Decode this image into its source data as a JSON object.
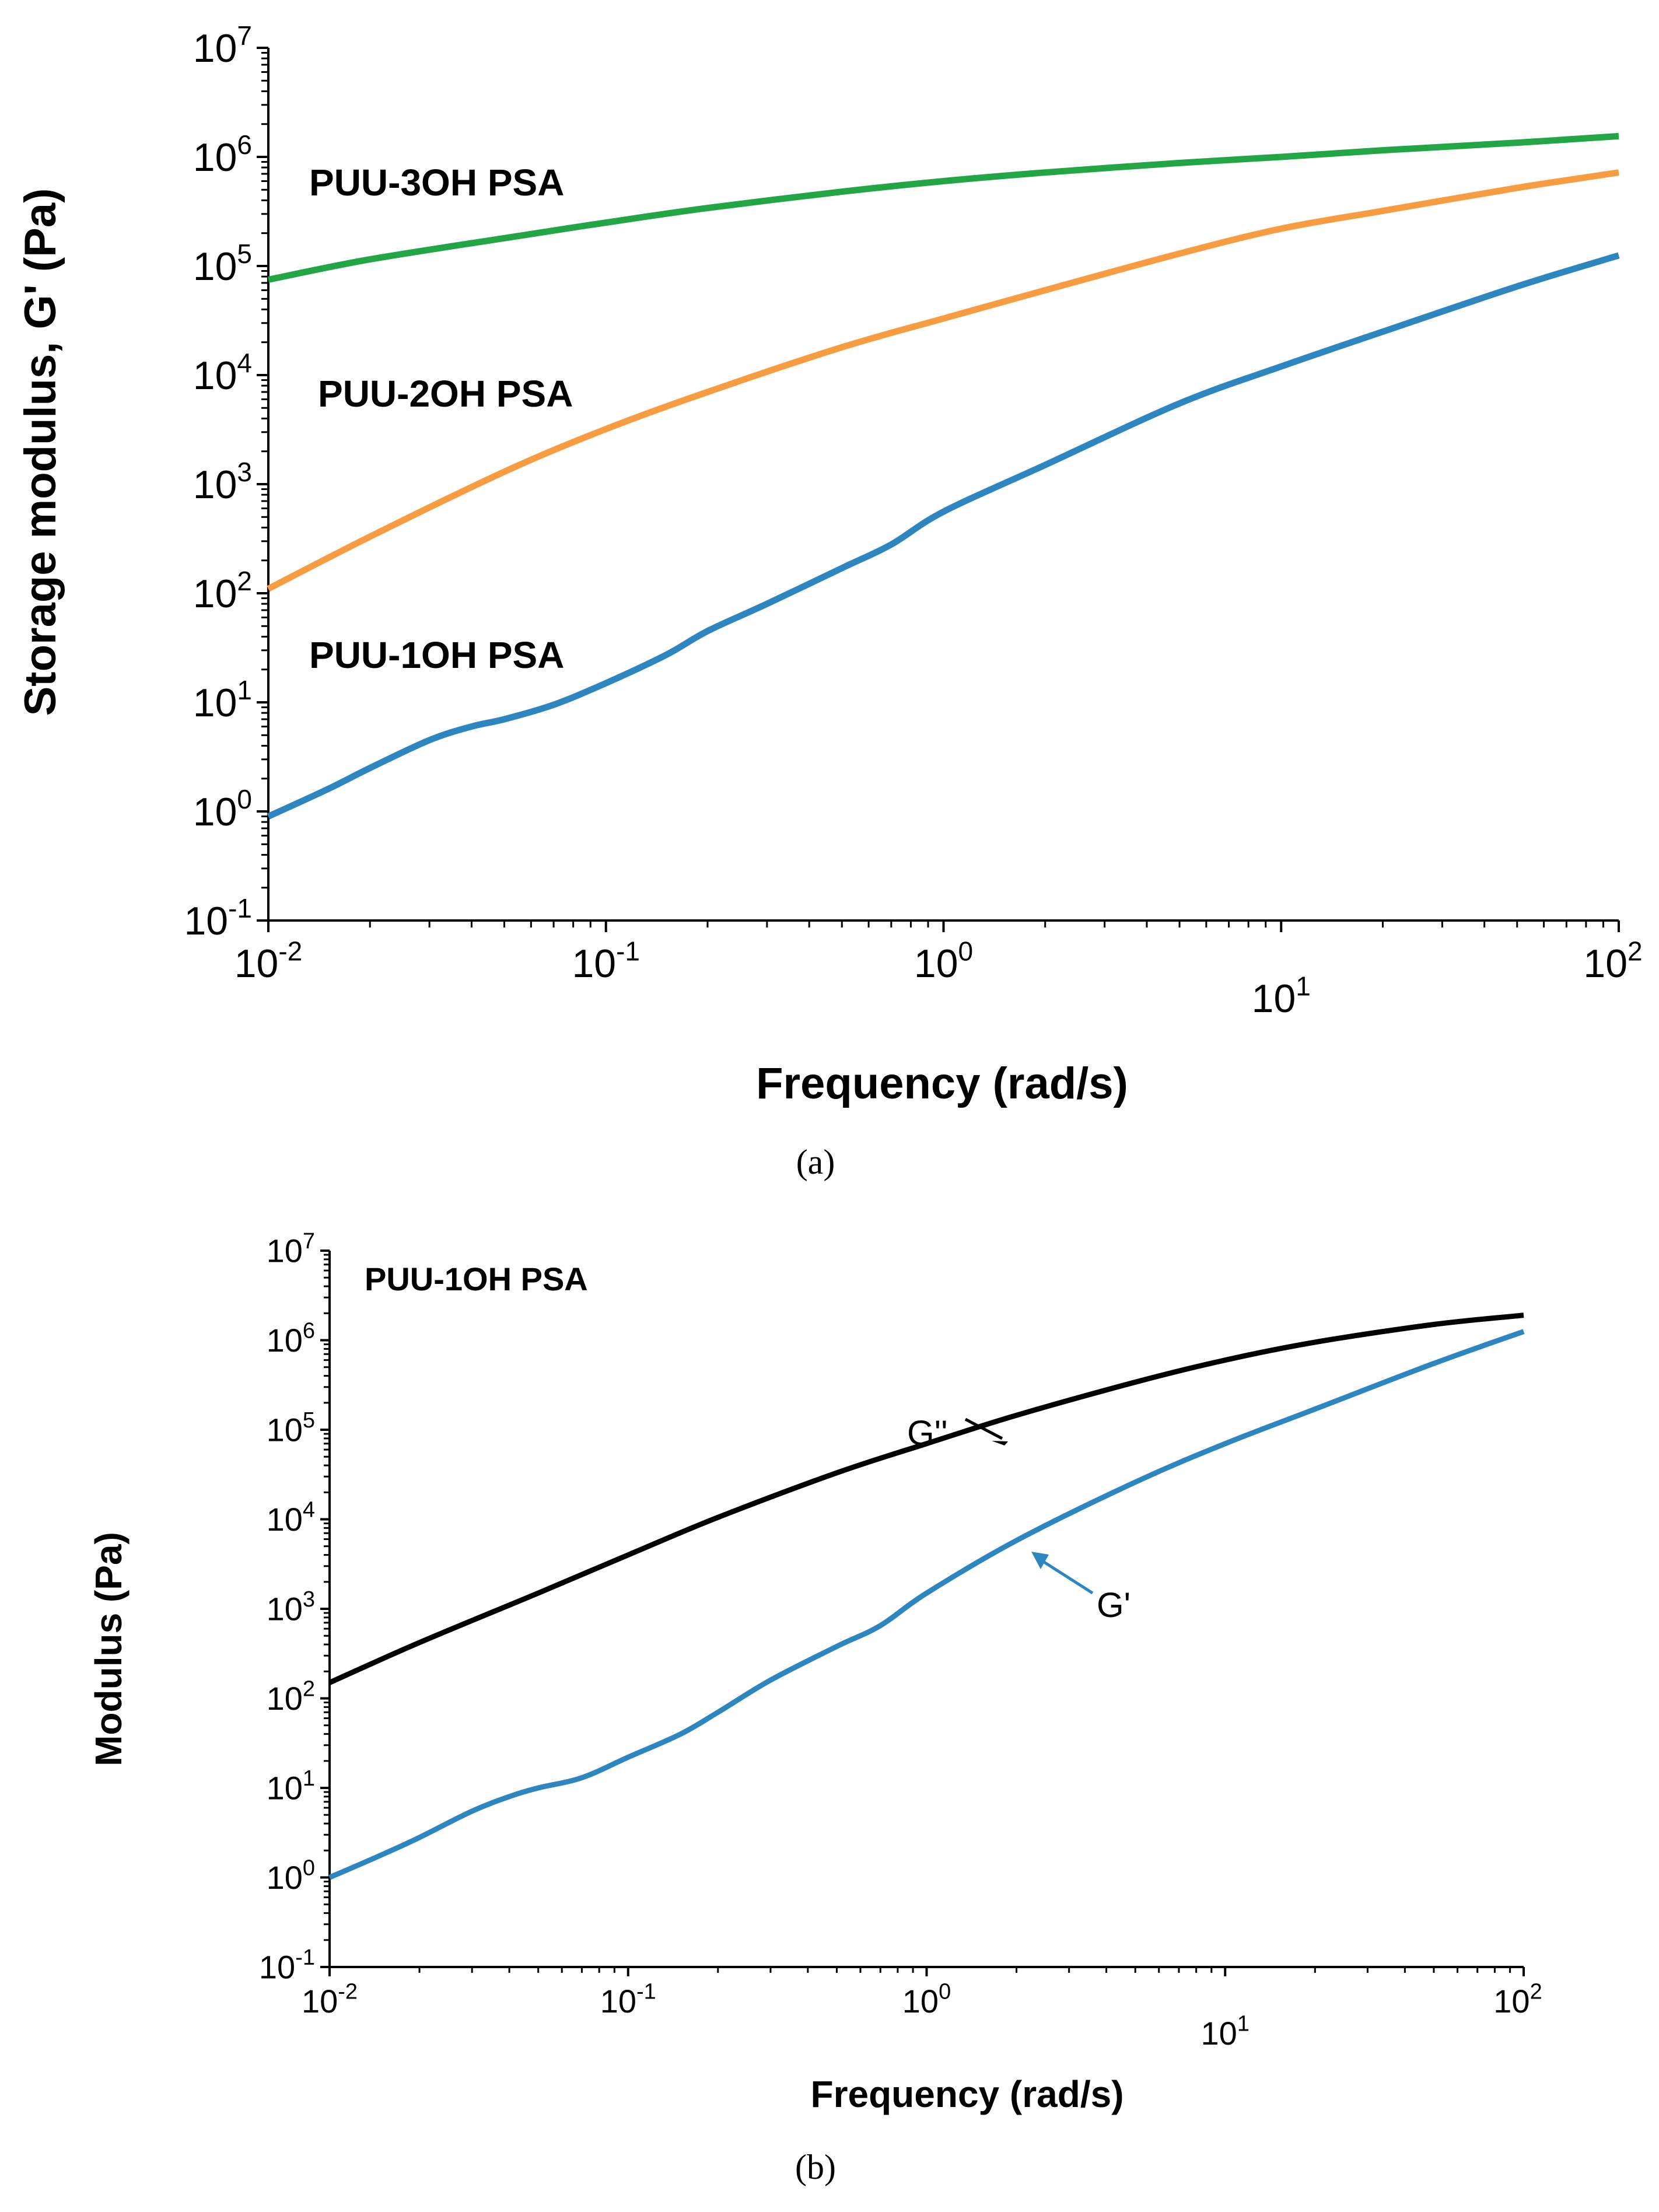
{
  "chart_data": [
    {
      "id": "a",
      "type": "line",
      "caption": "(a)",
      "xlabel": "Frequency (rad/s)",
      "ylabel": "Storage modulus, G' (Pa)",
      "xscale": "log",
      "yscale": "log",
      "xlim": [
        0.01,
        100
      ],
      "ylim": [
        0.1,
        10000000
      ],
      "x_ticks": [
        {
          "base": "10",
          "exp": "-2"
        },
        {
          "base": "10",
          "exp": "-1"
        },
        {
          "base": "10",
          "exp": "0"
        },
        {
          "base": "10",
          "exp": "1"
        },
        {
          "base": "10",
          "exp": "2"
        }
      ],
      "y_ticks": [
        {
          "base": "10",
          "exp": "-1"
        },
        {
          "base": "10",
          "exp": "0"
        },
        {
          "base": "10",
          "exp": "1"
        },
        {
          "base": "10",
          "exp": "2"
        },
        {
          "base": "10",
          "exp": "3"
        },
        {
          "base": "10",
          "exp": "4"
        },
        {
          "base": "10",
          "exp": "5"
        },
        {
          "base": "10",
          "exp": "6"
        },
        {
          "base": "10",
          "exp": "7"
        }
      ],
      "series": [
        {
          "name": "PUU-3OH PSA",
          "color": "#22a645",
          "x": [
            0.01,
            0.02,
            0.05,
            0.1,
            0.2,
            0.5,
            1,
            2,
            5,
            10,
            20,
            50,
            100
          ],
          "y": [
            75000,
            115000,
            180000,
            250000,
            340000,
            480000,
            600000,
            720000,
            880000,
            1000000,
            1150000,
            1350000,
            1550000
          ]
        },
        {
          "name": "PUU-2OH PSA",
          "color": "#f79c41",
          "x": [
            0.01,
            0.02,
            0.05,
            0.1,
            0.2,
            0.5,
            1,
            2,
            5,
            10,
            20,
            50,
            100
          ],
          "y": [
            110,
            330,
            1300,
            3200,
            7000,
            18000,
            33000,
            60000,
            130000,
            220000,
            320000,
            520000,
            720000
          ]
        },
        {
          "name": "PUU-1OH PSA",
          "color": "#2e86c1",
          "x": [
            0.01,
            0.015,
            0.02,
            0.03,
            0.04,
            0.05,
            0.07,
            0.1,
            0.15,
            0.2,
            0.3,
            0.5,
            0.7,
            1,
            2,
            5,
            10,
            20,
            50,
            100
          ],
          "y": [
            0.9,
            1.6,
            2.5,
            4.5,
            6.0,
            7.0,
            9.5,
            15,
            27,
            45,
            80,
            170,
            280,
            560,
            1500,
            5500,
            12000,
            25000,
            65000,
            125000
          ]
        }
      ]
    },
    {
      "id": "b",
      "type": "line",
      "caption": "(b)",
      "title": "PUU-1OH PSA",
      "xlabel": "Frequency (rad/s)",
      "ylabel": "Modulus (Pa)",
      "xscale": "log",
      "yscale": "log",
      "xlim": [
        0.01,
        100
      ],
      "ylim": [
        0.1,
        10000000
      ],
      "x_ticks": [
        {
          "base": "10",
          "exp": "-2"
        },
        {
          "base": "10",
          "exp": "-1"
        },
        {
          "base": "10",
          "exp": "0"
        },
        {
          "base": "10",
          "exp": "1"
        },
        {
          "base": "10",
          "exp": "2"
        }
      ],
      "y_ticks": [
        {
          "base": "10",
          "exp": "-1"
        },
        {
          "base": "10",
          "exp": "0"
        },
        {
          "base": "10",
          "exp": "1"
        },
        {
          "base": "10",
          "exp": "2"
        },
        {
          "base": "10",
          "exp": "3"
        },
        {
          "base": "10",
          "exp": "4"
        },
        {
          "base": "10",
          "exp": "5"
        },
        {
          "base": "10",
          "exp": "6"
        },
        {
          "base": "10",
          "exp": "7"
        }
      ],
      "series": [
        {
          "name": "G''",
          "color": "#000000",
          "x": [
            0.01,
            0.02,
            0.05,
            0.1,
            0.2,
            0.5,
            1,
            2,
            5,
            10,
            20,
            50,
            100
          ],
          "y": [
            150,
            420,
            1500,
            4000,
            10500,
            33000,
            70000,
            145000,
            340000,
            600000,
            950000,
            1500000,
            1900000
          ]
        },
        {
          "name": "G'",
          "color": "#2e86c1",
          "x": [
            0.01,
            0.015,
            0.02,
            0.03,
            0.04,
            0.05,
            0.07,
            0.1,
            0.15,
            0.2,
            0.3,
            0.5,
            0.7,
            1,
            2,
            5,
            10,
            20,
            50,
            100
          ],
          "y": [
            1.0,
            1.8,
            2.8,
            5.5,
            8.0,
            10,
            13,
            22,
            40,
            70,
            160,
            380,
            650,
            1500,
            5800,
            26000,
            70000,
            170000,
            550000,
            1250000
          ]
        }
      ],
      "annotations": [
        {
          "text": "G''",
          "color": "#000000",
          "arrow_to": {
            "x": 2.0,
            "y": 70000
          }
        },
        {
          "text": "G'",
          "color": "#2e86c1",
          "arrow_to": {
            "x": 2.1,
            "y": 6800
          }
        }
      ]
    }
  ]
}
